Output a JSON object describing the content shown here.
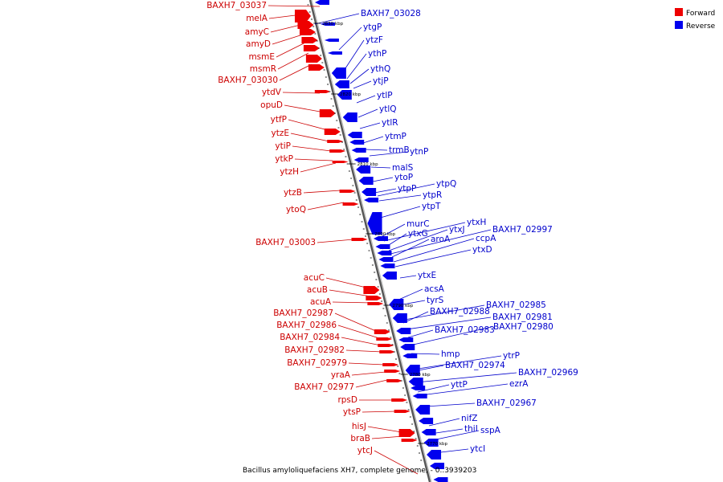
{
  "caption": "Bacillus amyloliquefaciens XH7, complete genome, - 0..3939203",
  "legend": [
    {
      "label": "Forward",
      "color": "#ee0000"
    },
    {
      "label": "Reverse",
      "color": "#0000ee"
    }
  ],
  "colors": {
    "forward": "#ee0000",
    "reverse": "#0000ee",
    "forward_label": "#cc0000",
    "reverse_label": "#0000cc",
    "backbone": "#777777"
  },
  "ticks": [
    "2830 kbp",
    "2820 kbp",
    "2810 kbp",
    "2800 kbp",
    "2790 kbp",
    "2780 kbp",
    "2770 kbp"
  ],
  "forward_labels": [
    "BAXH7_03037",
    "melA",
    "amyC",
    "amyD",
    "msmE",
    "msmR",
    "BAXH7_03030",
    "ytdV",
    "opuD",
    "ytfP",
    "ytzE",
    "ytiP",
    "ytkP",
    "ytzH",
    "ytzB",
    "ytoQ",
    "BAXH7_03003",
    "acuC",
    "acuB",
    "acuA",
    "BAXH7_02987",
    "BAXH7_02986",
    "BAXH7_02984",
    "BAXH7_02982",
    "BAXH7_02979",
    "yraA",
    "BAXH7_02977",
    "rpsD",
    "ytsP",
    "hisJ",
    "braB",
    "ytcJ"
  ],
  "reverse_labels": [
    "BAXH7_03028",
    "ytgP",
    "ytzF",
    "ythP",
    "ythQ",
    "ytjP",
    "ytlP",
    "ytlQ",
    "ytlR",
    "ytmP",
    "trmB",
    "ytnP",
    "malS",
    "ytoP",
    "ytpP",
    "ytpQ",
    "ytpR",
    "ytpT",
    "murC",
    "ytxH",
    "ytxG",
    "ytxJ",
    "BAXH7_02997",
    "aroA",
    "ccpA",
    "ytxD",
    "ytxE",
    "acsA",
    "tyrS",
    "BAXH7_02985",
    "BAXH7_02988",
    "BAXH7_02981",
    "BAXH7_02983",
    "BAXH7_02980",
    "hmp",
    "ytrP",
    "BAXH7_02974",
    "BAXH7_02969",
    "yttP",
    "ezrA",
    "BAXH7_02967",
    "nifZ",
    "thiI",
    "sspA",
    "ytcI"
  ]
}
